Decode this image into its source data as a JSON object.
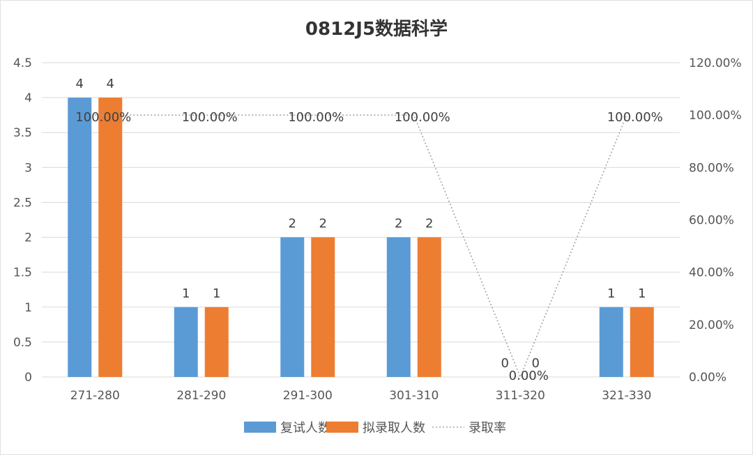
{
  "chart_data": {
    "type": "bar",
    "title": "0812J5数据科学",
    "categories": [
      "271-280",
      "281-290",
      "291-300",
      "301-310",
      "311-320",
      "321-330"
    ],
    "series": [
      {
        "name": "复试人数",
        "type": "bar",
        "axis": "left",
        "color": "#5b9bd5",
        "values": [
          4,
          1,
          2,
          2,
          0,
          1
        ],
        "labels": [
          "4",
          "1",
          "2",
          "2",
          "0",
          "1"
        ]
      },
      {
        "name": "拟录取人数",
        "type": "bar",
        "axis": "left",
        "color": "#ed7d31",
        "values": [
          4,
          1,
          2,
          2,
          0,
          1
        ],
        "labels": [
          "4",
          "1",
          "2",
          "2",
          "0",
          "1"
        ]
      },
      {
        "name": "录取率",
        "type": "line",
        "axis": "right",
        "style": "dotted",
        "color": "#a5a5a5",
        "values": [
          1.0,
          1.0,
          1.0,
          1.0,
          0.0,
          1.0
        ],
        "labels": [
          "100.00%",
          "100.00%",
          "100.00%",
          "100.00%",
          "0.00%",
          "100.00%"
        ]
      }
    ],
    "y_left": {
      "min": 0,
      "max": 4.5,
      "step": 0.5,
      "tick_labels": [
        "0",
        "0.5",
        "1",
        "1.5",
        "2",
        "2.5",
        "3",
        "3.5",
        "4",
        "4.5"
      ]
    },
    "y_right": {
      "min": 0,
      "max": 1.2,
      "step": 0.2,
      "tick_labels": [
        "0.00%",
        "20.00%",
        "40.00%",
        "60.00%",
        "80.00%",
        "100.00%",
        "120.00%"
      ]
    },
    "grid": true,
    "legend_position": "bottom"
  }
}
